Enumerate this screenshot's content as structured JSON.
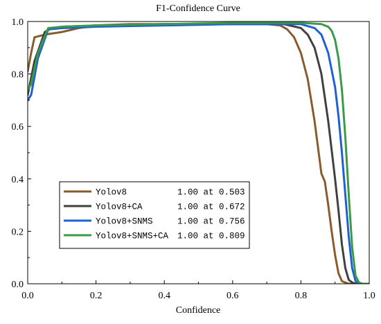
{
  "chart_data": {
    "type": "line",
    "title": "F1-Confidence Curve",
    "xlabel": "Confidence",
    "ylabel": "",
    "xlim": [
      0,
      1
    ],
    "ylim": [
      0,
      1
    ],
    "xticks": [
      0.0,
      0.2,
      0.4,
      0.6,
      0.8,
      1.0
    ],
    "xtick_labels": [
      "0.0",
      "0.2",
      "0.4",
      "0.6",
      "0.8",
      "1.0"
    ],
    "yticks": [
      0.0,
      0.2,
      0.4,
      0.6,
      0.8,
      1.0
    ],
    "ytick_labels": [
      "0.0",
      "0.2",
      "0.4",
      "0.6",
      "0.8",
      "1.0"
    ],
    "grid": false,
    "legend_position": "lower-left",
    "series": [
      {
        "name": "Yolov8",
        "legend_value": "1.00 at 0.503",
        "color": "#8B5A2B",
        "x": [
          0.0,
          0.01,
          0.02,
          0.05,
          0.1,
          0.15,
          0.2,
          0.3,
          0.4,
          0.5,
          0.6,
          0.7,
          0.74,
          0.76,
          0.78,
          0.8,
          0.82,
          0.84,
          0.86,
          0.87,
          0.88,
          0.89,
          0.9,
          0.91,
          0.92,
          0.93,
          0.94,
          1.0
        ],
        "y": [
          0.81,
          0.88,
          0.94,
          0.95,
          0.96,
          0.975,
          0.985,
          0.99,
          0.99,
          0.99,
          0.99,
          0.99,
          0.985,
          0.97,
          0.94,
          0.88,
          0.78,
          0.62,
          0.42,
          0.39,
          0.3,
          0.2,
          0.11,
          0.04,
          0.01,
          0.005,
          0.0,
          0.0
        ]
      },
      {
        "name": "Yolov8+CA",
        "legend_value": "1.00 at 0.672",
        "color": "#404040",
        "x": [
          0.0,
          0.02,
          0.05,
          0.07,
          0.1,
          0.2,
          0.4,
          0.6,
          0.75,
          0.8,
          0.82,
          0.84,
          0.86,
          0.88,
          0.89,
          0.9,
          0.91,
          0.92,
          0.93,
          0.94,
          0.95,
          0.96,
          1.0
        ],
        "y": [
          0.72,
          0.85,
          0.96,
          0.975,
          0.98,
          0.985,
          0.99,
          0.99,
          0.99,
          0.975,
          0.95,
          0.9,
          0.8,
          0.62,
          0.51,
          0.4,
          0.28,
          0.15,
          0.06,
          0.015,
          0.005,
          0.0,
          0.0
        ]
      },
      {
        "name": "Yolov8+SNMS",
        "legend_value": "1.00 at 0.756",
        "color": "#1F5FD6",
        "x": [
          0.0,
          0.01,
          0.03,
          0.06,
          0.1,
          0.2,
          0.4,
          0.6,
          0.8,
          0.84,
          0.86,
          0.88,
          0.9,
          0.91,
          0.92,
          0.93,
          0.94,
          0.95,
          0.96,
          0.97,
          1.0
        ],
        "y": [
          0.7,
          0.72,
          0.86,
          0.97,
          0.975,
          0.98,
          0.985,
          0.99,
          0.99,
          0.975,
          0.95,
          0.88,
          0.75,
          0.64,
          0.5,
          0.34,
          0.18,
          0.06,
          0.01,
          0.0,
          0.0
        ]
      },
      {
        "name": "Yolov8+SNMS+CA",
        "legend_value": "1.00 at 0.809",
        "color": "#3A9A48",
        "x": [
          0.0,
          0.01,
          0.03,
          0.06,
          0.1,
          0.2,
          0.4,
          0.6,
          0.8,
          0.86,
          0.88,
          0.89,
          0.9,
          0.91,
          0.92,
          0.93,
          0.94,
          0.95,
          0.96,
          0.97,
          0.98,
          1.0
        ],
        "y": [
          0.74,
          0.76,
          0.88,
          0.975,
          0.98,
          0.985,
          0.99,
          0.995,
          0.995,
          0.99,
          0.98,
          0.965,
          0.93,
          0.86,
          0.74,
          0.56,
          0.34,
          0.14,
          0.03,
          0.005,
          0.0,
          0.0
        ]
      }
    ]
  }
}
